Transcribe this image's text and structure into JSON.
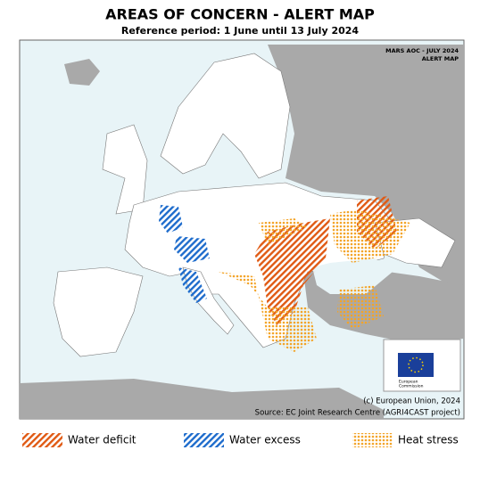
{
  "header": {
    "title": "AREAS OF CONCERN - ALERT MAP",
    "subtitle": "Reference period: 1 June until 13 July 2024"
  },
  "map": {
    "label_lines": [
      "MARS AOC - JULY 2024",
      "ALERT MAP"
    ],
    "copyright": "(c) European Union, 2024",
    "source": "Source: EC Joint Research Centre (AGRI4CAST project)",
    "logo_text": [
      "European",
      "Commission"
    ]
  },
  "legend": [
    {
      "label": "Water deficit"
    },
    {
      "label": "Water excess"
    },
    {
      "label": "Heat stress"
    }
  ]
}
